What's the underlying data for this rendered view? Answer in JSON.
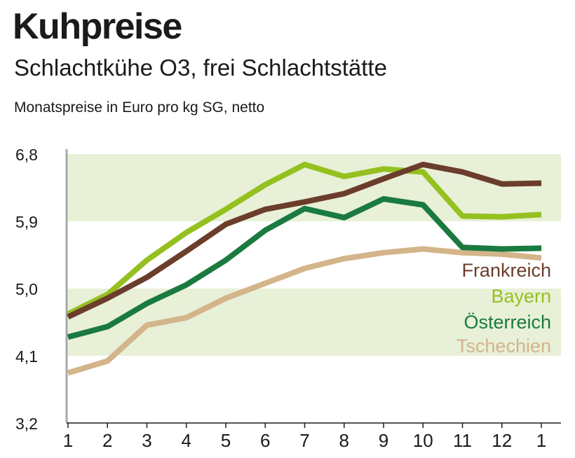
{
  "chart_data": {
    "type": "line",
    "title": "Kuhpreise",
    "subtitle": "Schlachtkühe O3, frei Schlachtstätte",
    "unit_label": "Monatspreise in Euro pro kg SG, netto",
    "categories": [
      "1",
      "2",
      "3",
      "4",
      "5",
      "6",
      "7",
      "8",
      "9",
      "10",
      "11",
      "12",
      "1"
    ],
    "ylim": [
      3.2,
      6.8
    ],
    "yticks": [
      3.2,
      4.1,
      5.0,
      5.9,
      6.8
    ],
    "ytick_labels": [
      "3,2",
      "4,1",
      "5,0",
      "5,9",
      "6,8"
    ],
    "bands": [
      [
        4.1,
        5.0
      ],
      [
        5.9,
        6.8
      ]
    ],
    "band_color": "#e8f0d8",
    "series": [
      {
        "name": "Tschechien",
        "color": "#d4b48a",
        "values": [
          3.87,
          4.03,
          4.51,
          4.61,
          4.87,
          5.07,
          5.27,
          5.4,
          5.48,
          5.53,
          5.48,
          5.46,
          5.41
        ]
      },
      {
        "name": "Österreich",
        "color": "#1a7a40",
        "values": [
          4.35,
          4.49,
          4.8,
          5.05,
          5.38,
          5.78,
          6.07,
          5.95,
          6.2,
          6.12,
          5.55,
          5.53,
          5.54
        ]
      },
      {
        "name": "Bayern",
        "color": "#94c11f",
        "values": [
          4.66,
          4.92,
          5.38,
          5.75,
          6.06,
          6.39,
          6.66,
          6.5,
          6.6,
          6.56,
          5.97,
          5.96,
          5.99
        ]
      },
      {
        "name": "Frankreich",
        "color": "#6b3d2b",
        "values": [
          4.62,
          4.87,
          5.15,
          5.5,
          5.86,
          6.06,
          6.16,
          6.27,
          6.47,
          6.66,
          6.56,
          6.4,
          6.41
        ]
      }
    ],
    "legend": [
      {
        "name": "Frankreich",
        "color": "#6b3d2b"
      },
      {
        "name": "Bayern",
        "color": "#94c11f"
      },
      {
        "name": "Österreich",
        "color": "#1a7a40"
      },
      {
        "name": "Tschechien",
        "color": "#d4b48a"
      }
    ],
    "legend_position": "right"
  }
}
